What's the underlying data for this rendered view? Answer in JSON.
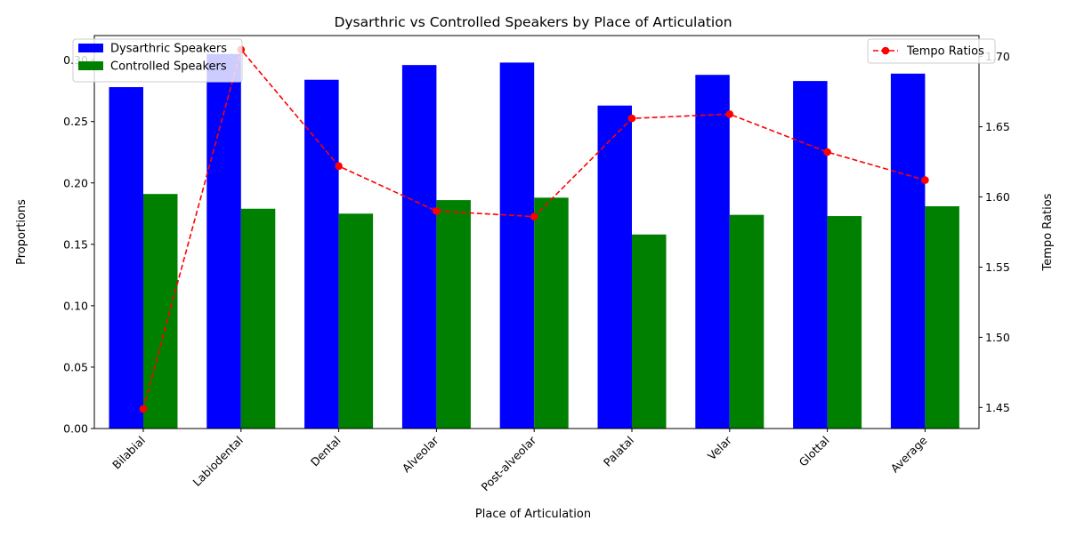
{
  "chart_data": {
    "type": "bar",
    "title": "Dysarthric vs Controlled Speakers by Place of Articulation",
    "xlabel": "Place of Articulation",
    "ylabel": "Proportions",
    "y2label": "Tempo Ratios",
    "categories": [
      "Bilabial",
      "Labiodental",
      "Dental",
      "Alveolar",
      "Post-alveolar",
      "Palatal",
      "Velar",
      "Glottal",
      "Average"
    ],
    "series": [
      {
        "name": "Dysarthric Speakers",
        "type": "bar",
        "axis": "left",
        "color": "#0000ff",
        "values": [
          0.278,
          0.305,
          0.284,
          0.296,
          0.298,
          0.263,
          0.288,
          0.283,
          0.289
        ]
      },
      {
        "name": "Controlled Speakers",
        "type": "bar",
        "axis": "left",
        "color": "#008000",
        "values": [
          0.191,
          0.179,
          0.175,
          0.186,
          0.188,
          0.158,
          0.174,
          0.173,
          0.181
        ]
      },
      {
        "name": "Tempo Ratios",
        "type": "line",
        "axis": "right",
        "color": "#ff0000",
        "style": "dashed",
        "marker": "circle",
        "values": [
          1.449,
          1.705,
          1.622,
          1.59,
          1.586,
          1.656,
          1.659,
          1.632,
          1.612
        ]
      }
    ],
    "ylim": [
      0,
      0.32
    ],
    "y2lim": [
      1.435,
      1.715
    ],
    "yticks": [
      "0.00",
      "0.05",
      "0.10",
      "0.15",
      "0.20",
      "0.25",
      "0.30"
    ],
    "y2ticks": [
      "1.45",
      "1.50",
      "1.55",
      "1.60",
      "1.65",
      "1.70"
    ],
    "legend_left": "upper-left",
    "legend_right": "upper-right",
    "grid": false
  }
}
